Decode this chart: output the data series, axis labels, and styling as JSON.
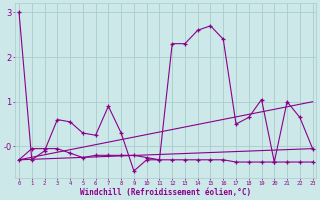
{
  "xlabel": "Windchill (Refroidissement éolien,°C)",
  "x": [
    0,
    1,
    2,
    3,
    4,
    5,
    6,
    7,
    8,
    9,
    10,
    11,
    12,
    13,
    14,
    15,
    16,
    17,
    18,
    19,
    20,
    21,
    22,
    23
  ],
  "line1": [
    3.0,
    -0.3,
    -0.1,
    0.6,
    0.55,
    0.3,
    0.25,
    0.9,
    0.3,
    -0.55,
    -0.3,
    -0.3,
    2.3,
    2.3,
    2.6,
    2.7,
    2.4,
    0.5,
    0.65,
    1.05,
    -0.35,
    1.0,
    0.65,
    -0.05
  ],
  "line2": [
    -0.3,
    -0.05,
    -0.05,
    -0.05,
    -0.15,
    -0.25,
    -0.2,
    -0.2,
    -0.2,
    -0.2,
    -0.25,
    -0.3,
    -0.3,
    -0.3,
    -0.3,
    -0.3,
    -0.3,
    -0.35,
    -0.35,
    -0.35,
    -0.35,
    -0.35,
    -0.35,
    -0.35
  ],
  "line3_x": [
    0,
    23
  ],
  "line3_y": [
    -0.3,
    -0.05
  ],
  "line4_x": [
    0,
    23
  ],
  "line4_y": [
    -0.3,
    1.0
  ],
  "line_color": "#8b008b",
  "bg_color": "#cce8e8",
  "grid_color": "#aacccc",
  "ylim": [
    -0.7,
    3.2
  ],
  "yticks": [
    0,
    1,
    2,
    3
  ],
  "ytick_labels": [
    "-0",
    "1",
    "2",
    "3"
  ],
  "xlim": [
    -0.3,
    23.3
  ]
}
